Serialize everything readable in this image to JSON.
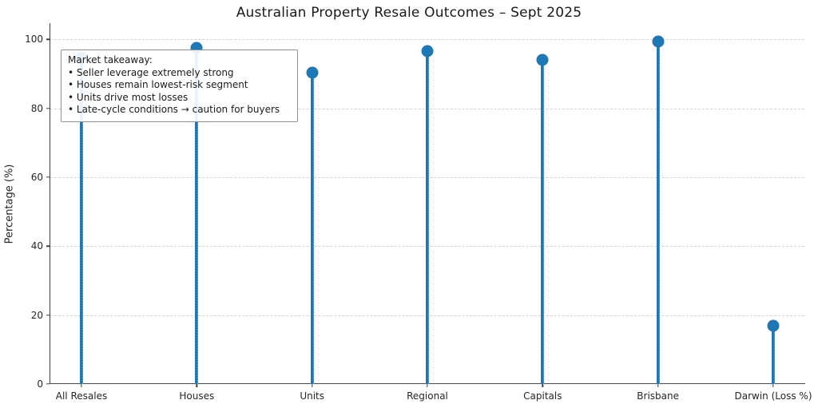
{
  "chart_data": {
    "type": "stem",
    "title": "Australian Property Resale Outcomes – Sept 2025",
    "xlabel": "",
    "ylabel": "Percentage (%)",
    "categories": [
      "All Resales",
      "Houses",
      "Units",
      "Regional",
      "Capitals",
      "Brisbane",
      "Darwin (Loss %)"
    ],
    "values": [
      94.8,
      97.6,
      90.3,
      96.6,
      94.0,
      99.4,
      16.8
    ],
    "ylim": [
      0,
      104.7
    ],
    "yticks": [
      0,
      20,
      40,
      60,
      80,
      100
    ],
    "grid": "horizontal-dashed",
    "legend": "none",
    "accent_color": "#1f77b4",
    "grid_color": "#d4d4d4",
    "axis_color": "#3d3d3d",
    "annotation": {
      "title": "Market takeaway:",
      "bullets": [
        "Seller leverage extremely strong",
        "Houses remain lowest-risk segment",
        "Units drive most losses",
        "Late-cycle conditions → caution for buyers"
      ]
    }
  }
}
